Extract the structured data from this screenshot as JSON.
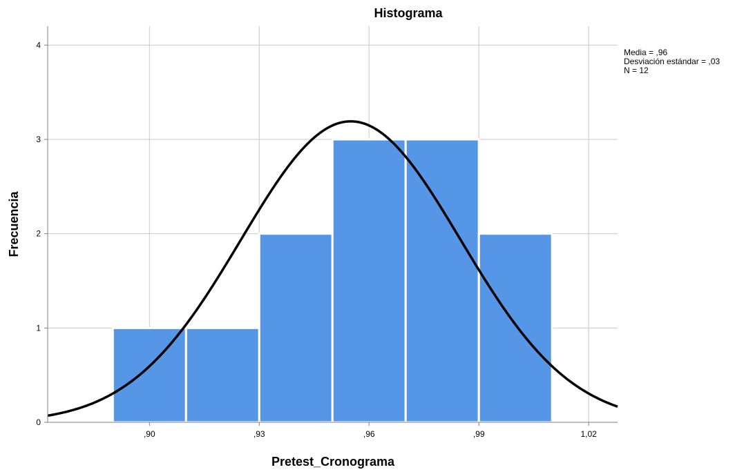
{
  "chart_data": {
    "type": "bar",
    "title": "Histograma",
    "xlabel": "Pretest_Cronograma",
    "ylabel": "Frecuencia",
    "bins": [
      {
        "start": 0.89,
        "end": 0.91,
        "count": 1
      },
      {
        "start": 0.91,
        "end": 0.93,
        "count": 1
      },
      {
        "start": 0.93,
        "end": 0.95,
        "count": 2
      },
      {
        "start": 0.95,
        "end": 0.97,
        "count": 3
      },
      {
        "start": 0.97,
        "end": 0.99,
        "count": 3
      },
      {
        "start": 0.99,
        "end": 1.01,
        "count": 2
      }
    ],
    "xlim": [
      0.8722,
      1.0279
    ],
    "ylim": [
      0,
      4.2
    ],
    "x_ticks": [
      {
        "value": 0.9,
        "label": ",90"
      },
      {
        "value": 0.93,
        "label": ",93"
      },
      {
        "value": 0.96,
        "label": ",96"
      },
      {
        "value": 0.99,
        "label": ",99"
      },
      {
        "value": 1.02,
        "label": "1,02"
      }
    ],
    "y_ticks": [
      {
        "value": 0,
        "label": "0"
      },
      {
        "value": 1,
        "label": "1"
      },
      {
        "value": 2,
        "label": "2"
      },
      {
        "value": 3,
        "label": "3"
      },
      {
        "value": 4,
        "label": "4"
      }
    ],
    "grid": true,
    "normal_curve": {
      "mean": 0.955,
      "sd": 0.03,
      "n": 12,
      "bin_width": 0.02
    },
    "stats": [
      "Media = ,96",
      "Desviación estándar = ,03",
      "N = 12"
    ],
    "colors": {
      "bar": "#5596e6",
      "curve": "#000000",
      "grid": "#c8c8c8",
      "axis": "#7f7f7f"
    }
  }
}
